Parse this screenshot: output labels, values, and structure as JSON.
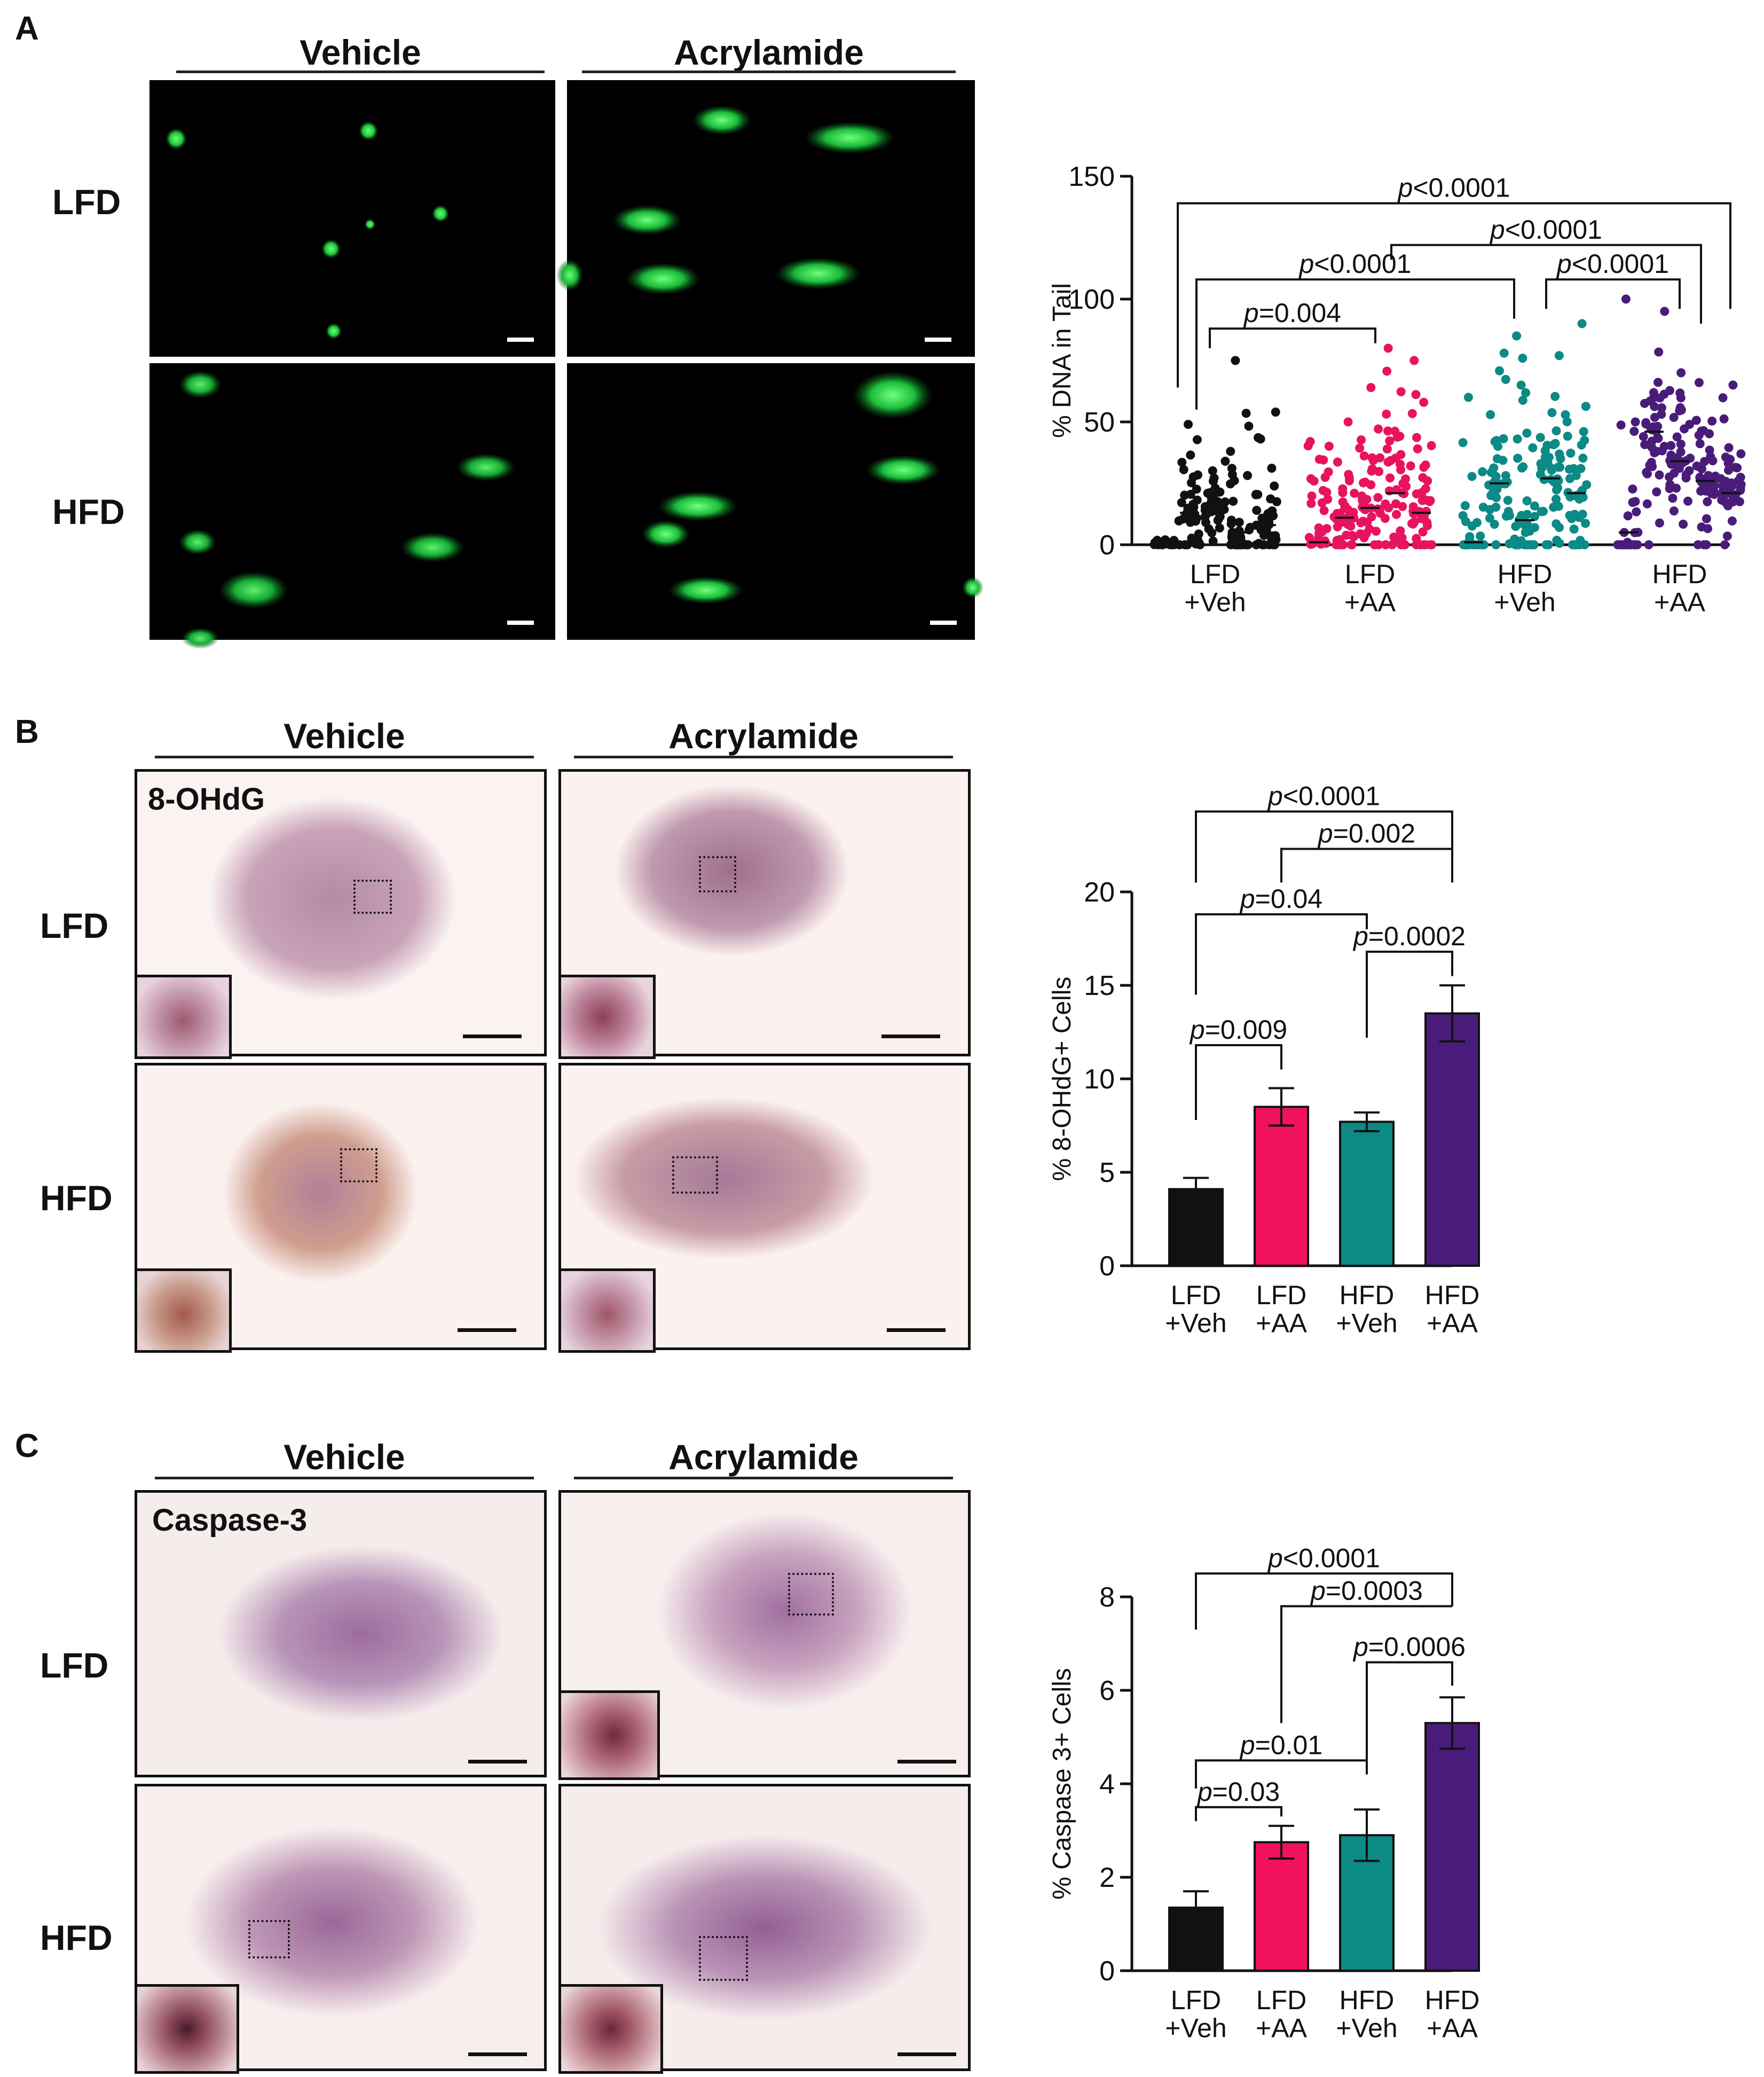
{
  "panels": [
    {
      "letter": "A",
      "col_headers": [
        "Vehicle",
        "Acrylamide"
      ],
      "row_labels": [
        "LFD",
        "HFD"
      ],
      "chart_data": {
        "type": "scatter",
        "ylabel": "% DNA in Tail",
        "xlabel": "",
        "ylim": [
          0,
          150
        ],
        "yticks": [
          0,
          50,
          100,
          150
        ],
        "categories": [
          "LFD\n+Veh",
          "LFD\n+AA",
          "HFD\n+Veh",
          "HFD\n+AA"
        ],
        "category_lines": [
          [
            "LFD",
            "+Veh"
          ],
          [
            "LFD",
            "+AA"
          ],
          [
            "HFD",
            "+Veh"
          ],
          [
            "HFD",
            "+AA"
          ]
        ],
        "series": [
          {
            "color": "#111111",
            "medians": [
              0,
              13,
              15,
              5,
              8
            ],
            "max": [
              2,
              49,
              34,
              75,
              54
            ]
          },
          {
            "color": "#e8135f",
            "medians": [
              1,
              11,
              15,
              21,
              13
            ],
            "max": [
              42,
              50,
              64,
              80,
              75
            ]
          },
          {
            "color": "#0b8a86",
            "medians": [
              1,
              25,
              10,
              27,
              21
            ],
            "max": [
              60,
              78,
              85,
              77,
              90
            ]
          },
          {
            "color": "#4a1c7a",
            "medians": [
              5,
              46,
              34,
              26,
              21
            ],
            "max": [
              100,
              95,
              70,
              66,
              65
            ]
          }
        ],
        "comparisons": [
          {
            "label": "p<0.0001",
            "from": 0,
            "to": 3
          },
          {
            "label": "p<0.0001",
            "from": 1,
            "to": 3
          },
          {
            "label": "p<0.0001",
            "from": 0,
            "to": 2
          },
          {
            "label": "p<0.0001",
            "from": 2,
            "to": 3
          },
          {
            "label": "p=0.004",
            "from": 0,
            "to": 1
          }
        ]
      }
    },
    {
      "letter": "B",
      "col_headers": [
        "Vehicle",
        "Acrylamide"
      ],
      "row_labels": [
        "LFD",
        "HFD"
      ],
      "stain": "8-OHdG",
      "chart_data": {
        "type": "bar",
        "ylabel": "% 8-OHdG+ Cells",
        "xlabel": "",
        "ylim": [
          0,
          20
        ],
        "yticks": [
          0,
          5,
          10,
          15,
          20
        ],
        "categories": [
          "LFD\n+Veh",
          "LFD\n+AA",
          "HFD\n+Veh",
          "HFD\n+AA"
        ],
        "category_lines": [
          [
            "LFD",
            "+Veh"
          ],
          [
            "LFD",
            "+AA"
          ],
          [
            "HFD",
            "+Veh"
          ],
          [
            "HFD",
            "+AA"
          ]
        ],
        "values": [
          4.1,
          8.5,
          7.7,
          13.5
        ],
        "errors": [
          0.6,
          1.0,
          0.5,
          1.5
        ],
        "colors": [
          "#111111",
          "#f0125f",
          "#0b8a86",
          "#4a1c7a"
        ],
        "comparisons": [
          {
            "label": "p<0.0001",
            "from": 0,
            "to": 3
          },
          {
            "label": "p=0.002",
            "from": 1,
            "to": 3
          },
          {
            "label": "p=0.04",
            "from": 0,
            "to": 2
          },
          {
            "label": "p=0.0002",
            "from": 2,
            "to": 3
          },
          {
            "label": "p=0.009",
            "from": 0,
            "to": 1
          }
        ]
      }
    },
    {
      "letter": "C",
      "col_headers": [
        "Vehicle",
        "Acrylamide"
      ],
      "row_labels": [
        "LFD",
        "HFD"
      ],
      "stain": "Caspase-3",
      "chart_data": {
        "type": "bar",
        "ylabel": "% Caspase 3+ Cells",
        "xlabel": "",
        "ylim": [
          0,
          8
        ],
        "yticks": [
          0,
          2,
          4,
          6,
          8
        ],
        "categories": [
          "LFD\n+Veh",
          "LFD\n+AA",
          "HFD\n+Veh",
          "HFD\n+AA"
        ],
        "category_lines": [
          [
            "LFD",
            "+Veh"
          ],
          [
            "LFD",
            "+AA"
          ],
          [
            "HFD",
            "+Veh"
          ],
          [
            "HFD",
            "+AA"
          ]
        ],
        "values": [
          1.35,
          2.75,
          2.9,
          5.3
        ],
        "errors": [
          0.35,
          0.35,
          0.55,
          0.55
        ],
        "colors": [
          "#111111",
          "#f0125f",
          "#0b8a86",
          "#4a1c7a"
        ],
        "comparisons": [
          {
            "label": "p<0.0001",
            "from": 0,
            "to": 3
          },
          {
            "label": "p=0.0003",
            "from": 1,
            "to": 3
          },
          {
            "label": "p=0.0006",
            "from": 2,
            "to": 3
          },
          {
            "label": "p=0.01",
            "from": 0,
            "to": 2
          },
          {
            "label": "p=0.03",
            "from": 0,
            "to": 1
          }
        ]
      }
    }
  ]
}
